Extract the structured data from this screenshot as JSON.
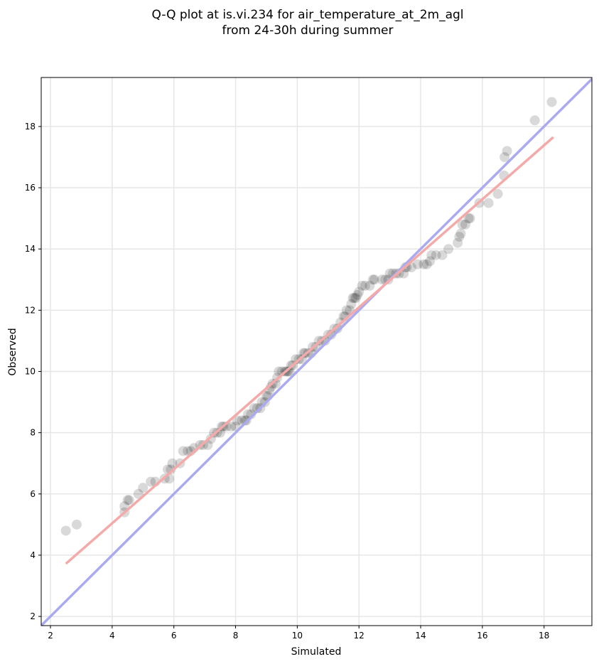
{
  "chart_data": {
    "type": "scatter",
    "title_line1": "Q-Q plot at is.vi.234 for air_temperature_at_2m_agl",
    "title_line2": "from 24-30h during summer",
    "xlabel": "Simulated",
    "ylabel": "Observed",
    "xlim": [
      1.7,
      19.55
    ],
    "ylim": [
      1.7,
      19.6
    ],
    "xticks": [
      2,
      4,
      6,
      8,
      10,
      12,
      14,
      16,
      18
    ],
    "yticks": [
      2,
      4,
      6,
      8,
      10,
      12,
      14,
      16,
      18
    ],
    "grid": true,
    "identity_line": {
      "color": "#aaaaf0",
      "x": [
        1.7,
        19.55
      ],
      "y": [
        1.7,
        19.55
      ]
    },
    "fit_line": {
      "color": "#f5aaaa",
      "x": [
        2.5,
        18.3
      ],
      "y": [
        3.72,
        17.65
      ]
    },
    "point_color": "#000000",
    "points": [
      [
        2.5,
        4.8
      ],
      [
        2.85,
        5.0
      ],
      [
        4.4,
        5.4
      ],
      [
        4.4,
        5.6
      ],
      [
        4.5,
        5.8
      ],
      [
        4.55,
        5.8
      ],
      [
        4.85,
        6.0
      ],
      [
        5.0,
        6.2
      ],
      [
        5.25,
        6.4
      ],
      [
        5.4,
        6.4
      ],
      [
        5.7,
        6.5
      ],
      [
        5.8,
        6.8
      ],
      [
        5.85,
        6.5
      ],
      [
        5.9,
        6.8
      ],
      [
        5.95,
        7.0
      ],
      [
        6.2,
        7.0
      ],
      [
        6.3,
        7.4
      ],
      [
        6.45,
        7.4
      ],
      [
        6.55,
        7.4
      ],
      [
        6.65,
        7.5
      ],
      [
        6.85,
        7.6
      ],
      [
        6.95,
        7.6
      ],
      [
        7.1,
        7.6
      ],
      [
        7.2,
        7.8
      ],
      [
        7.3,
        8.0
      ],
      [
        7.4,
        8.0
      ],
      [
        7.5,
        8.0
      ],
      [
        7.55,
        8.2
      ],
      [
        7.6,
        8.2
      ],
      [
        7.7,
        8.2
      ],
      [
        7.85,
        8.2
      ],
      [
        8.0,
        8.2
      ],
      [
        8.05,
        8.4
      ],
      [
        8.2,
        8.4
      ],
      [
        8.3,
        8.4
      ],
      [
        8.35,
        8.4
      ],
      [
        8.4,
        8.6
      ],
      [
        8.5,
        8.6
      ],
      [
        8.6,
        8.8
      ],
      [
        8.7,
        8.8
      ],
      [
        8.8,
        8.8
      ],
      [
        8.85,
        9.0
      ],
      [
        8.95,
        9.0
      ],
      [
        9.0,
        9.2
      ],
      [
        9.05,
        9.2
      ],
      [
        9.1,
        9.4
      ],
      [
        9.15,
        9.5
      ],
      [
        9.2,
        9.6
      ],
      [
        9.3,
        9.6
      ],
      [
        9.35,
        9.8
      ],
      [
        9.4,
        10.0
      ],
      [
        9.5,
        10.0
      ],
      [
        9.6,
        10.0
      ],
      [
        9.65,
        10.0
      ],
      [
        9.7,
        10.0
      ],
      [
        9.75,
        10.0
      ],
      [
        9.8,
        10.2
      ],
      [
        9.85,
        10.2
      ],
      [
        9.95,
        10.4
      ],
      [
        10.05,
        10.4
      ],
      [
        10.15,
        10.4
      ],
      [
        10.2,
        10.6
      ],
      [
        10.25,
        10.6
      ],
      [
        10.35,
        10.6
      ],
      [
        10.45,
        10.6
      ],
      [
        10.5,
        10.8
      ],
      [
        10.6,
        10.8
      ],
      [
        10.7,
        11.0
      ],
      [
        10.8,
        11.0
      ],
      [
        10.9,
        11.0
      ],
      [
        11.0,
        11.2
      ],
      [
        11.1,
        11.2
      ],
      [
        11.2,
        11.4
      ],
      [
        11.3,
        11.4
      ],
      [
        11.4,
        11.6
      ],
      [
        11.5,
        11.8
      ],
      [
        11.55,
        11.8
      ],
      [
        11.6,
        12.0
      ],
      [
        11.7,
        12.0
      ],
      [
        11.75,
        12.2
      ],
      [
        11.8,
        12.4
      ],
      [
        11.85,
        12.4
      ],
      [
        11.9,
        12.4
      ],
      [
        11.95,
        12.5
      ],
      [
        12.0,
        12.6
      ],
      [
        12.1,
        12.8
      ],
      [
        12.2,
        12.8
      ],
      [
        12.35,
        12.8
      ],
      [
        12.45,
        13.0
      ],
      [
        12.5,
        13.0
      ],
      [
        12.75,
        13.0
      ],
      [
        12.85,
        13.0
      ],
      [
        12.95,
        13.0
      ],
      [
        13.0,
        13.2
      ],
      [
        13.1,
        13.2
      ],
      [
        13.2,
        13.2
      ],
      [
        13.3,
        13.2
      ],
      [
        13.45,
        13.2
      ],
      [
        13.5,
        13.4
      ],
      [
        13.55,
        13.4
      ],
      [
        13.7,
        13.4
      ],
      [
        13.9,
        13.5
      ],
      [
        14.1,
        13.5
      ],
      [
        14.2,
        13.5
      ],
      [
        14.3,
        13.6
      ],
      [
        14.35,
        13.8
      ],
      [
        14.5,
        13.8
      ],
      [
        14.7,
        13.8
      ],
      [
        14.9,
        14.0
      ],
      [
        15.2,
        14.2
      ],
      [
        15.25,
        14.4
      ],
      [
        15.3,
        14.5
      ],
      [
        15.35,
        14.8
      ],
      [
        15.45,
        14.8
      ],
      [
        15.55,
        15.0
      ],
      [
        15.6,
        15.0
      ],
      [
        15.9,
        15.5
      ],
      [
        16.2,
        15.5
      ],
      [
        16.5,
        15.8
      ],
      [
        16.7,
        16.4
      ],
      [
        16.72,
        17.0
      ],
      [
        16.8,
        17.2
      ],
      [
        17.7,
        18.2
      ],
      [
        18.25,
        18.8
      ]
    ]
  }
}
